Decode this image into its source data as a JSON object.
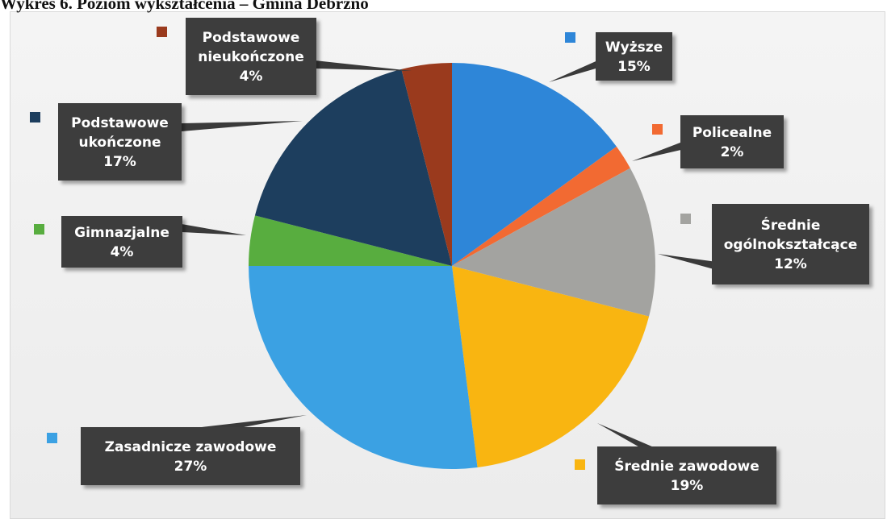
{
  "heading": "Wykres 6. Poziom wykształcenia – Gmina Debrzno",
  "chart_data": {
    "type": "pie",
    "title": "Wykres 6. Poziom wykształcenia – Gmina Debrzno",
    "slices": [
      {
        "name": "Wyższe",
        "label_lines": [
          "Wyższe",
          "15%"
        ],
        "value": 15,
        "color": "#2e86d8"
      },
      {
        "name": "Policealne",
        "label_lines": [
          "Policealne",
          "2%"
        ],
        "value": 2,
        "color": "#f26a32"
      },
      {
        "name": "Średnie ogólnokształcące",
        "label_lines": [
          "Średnie",
          "ogólnokształcące",
          "12%"
        ],
        "value": 12,
        "color": "#a3a3a0"
      },
      {
        "name": "Średnie zawodowe",
        "label_lines": [
          "Średnie zawodowe",
          "19%"
        ],
        "value": 19,
        "color": "#f9b511"
      },
      {
        "name": "Zasadnicze zawodowe",
        "label_lines": [
          "Zasadnicze zawodowe",
          "27%"
        ],
        "value": 27,
        "color": "#3ba1e3"
      },
      {
        "name": "Gimnazjalne",
        "label_lines": [
          "Gimnazjalne",
          "4%"
        ],
        "value": 4,
        "color": "#58ad3f"
      },
      {
        "name": "Podstawowe ukończone",
        "label_lines": [
          "Podstawowe",
          "ukończone",
          "17%"
        ],
        "value": 17,
        "color": "#1d3e5e"
      },
      {
        "name": "Podstawowe nieukończone",
        "label_lines": [
          "Podstawowe",
          "nieukończone",
          "4%"
        ],
        "value": 4,
        "color": "#9a3a1d"
      }
    ]
  }
}
